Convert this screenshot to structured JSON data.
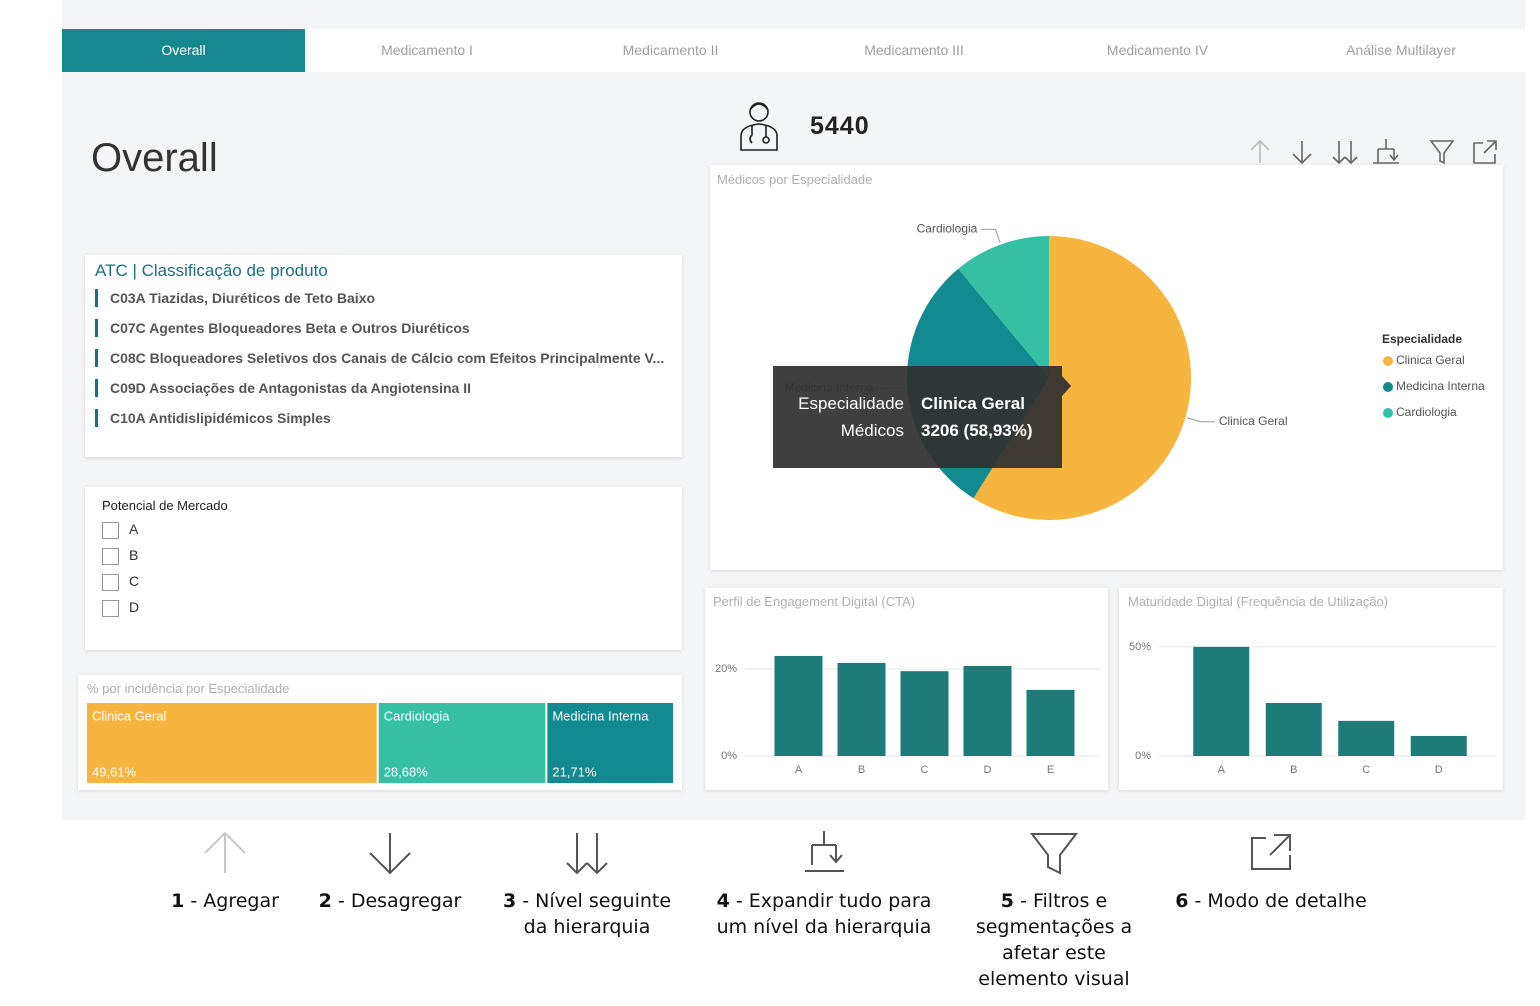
{
  "tabs": [
    "Overall",
    "Medicamento I",
    "Medicamento II",
    "Medicamento III",
    "Medicamento IV",
    "Análise Multilayer"
  ],
  "page_title": "Overall",
  "kpi": {
    "value": 5440
  },
  "atc_slicer": {
    "title": "ATC | Classificação de produto",
    "items": [
      "C03A Tiazidas, Diuréticos de Teto Baixo",
      "C07C Agentes Bloqueadores Beta e Outros Diuréticos",
      "C08C Bloqueadores Seletivos dos Canais de Cálcio com Efeitos Principalmente V...",
      "C09D Associações de Antagonistas da Angiotensina II",
      "C10A Antidislipidémicos Simples"
    ]
  },
  "market_slicer": {
    "title": "Potencial de Mercado",
    "options": [
      "A",
      "B",
      "C",
      "D"
    ]
  },
  "chart_data": [
    {
      "type": "pie",
      "title": "Médicos por Especialidade",
      "legend_title": "Especialidade",
      "legend": "right",
      "categories": [
        "Clinica Geral",
        "Medicina Interna",
        "Cardiologia"
      ],
      "values": [
        3206,
        1634,
        600
      ],
      "colors": [
        "#f5b53f",
        "#138a8f",
        "#35c0a5"
      ]
    },
    {
      "type": "treemap",
      "title": "% por incidência por Especialidade",
      "categories": [
        "Clinica Geral",
        "Cardiologia",
        "Medicina Interna"
      ],
      "values": [
        49.61,
        28.68,
        21.71
      ],
      "value_labels": [
        "49,61%",
        "28,68%",
        "21,71%"
      ],
      "colors": [
        "#f5b53f",
        "#35c0a5",
        "#138a8f"
      ]
    },
    {
      "type": "bar",
      "title": "Perfil de Engagement Digital (CTA)",
      "categories": [
        "A",
        "B",
        "C",
        "D",
        "E"
      ],
      "values": [
        23.0,
        21.4,
        19.5,
        20.7,
        15.2
      ],
      "color": "#1e7c78",
      "ylim": [
        0,
        25
      ],
      "yticks": [
        {
          "value": 0,
          "label": "0%"
        },
        {
          "value": 20,
          "label": "20%"
        }
      ],
      "grid": true
    },
    {
      "type": "bar",
      "title": "Maturidade Digital (Frequência de Utilização)",
      "categories": [
        "A",
        "B",
        "C",
        "D"
      ],
      "values": [
        50,
        24.3,
        16.1,
        9.2
      ],
      "color": "#1e7c78",
      "ylim": [
        0,
        55
      ],
      "yticks": [
        {
          "value": 0,
          "label": "0%"
        },
        {
          "value": 50,
          "label": "50%"
        }
      ],
      "grid": true
    }
  ],
  "tooltip": {
    "rows": [
      {
        "label": "Especialidade",
        "value": "Clinica Geral"
      },
      {
        "label": "Médicos",
        "value": "3206 (58,93%)"
      }
    ]
  },
  "help": {
    "items": [
      {
        "number": "1",
        "label": "- Agregar"
      },
      {
        "number": "2",
        "label": "- Desagregar"
      },
      {
        "number": "3",
        "label": "- Nível seguinte da hierarquia"
      },
      {
        "number": "4",
        "label": "- Expandir tudo para um nível da hierarquia"
      },
      {
        "number": "5",
        "label": "- Filtros e segmentações a afetar este elemento visual"
      },
      {
        "number": "6",
        "label": "- Modo de detalhe"
      }
    ]
  }
}
